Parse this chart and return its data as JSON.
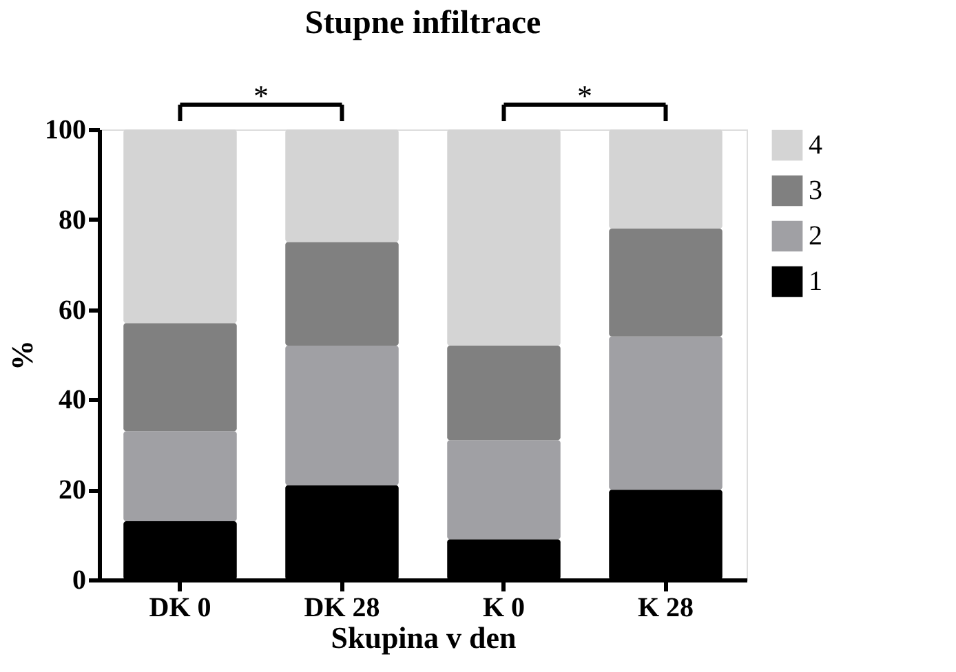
{
  "chart_data": {
    "type": "bar",
    "title": "Stupne infiltrace",
    "xlabel": "Skupina v den",
    "ylabel": "%",
    "categories": [
      "DK 0",
      "DK 28",
      "K 0",
      "K 28"
    ],
    "stacked": true,
    "series": [
      {
        "name": "1",
        "color": "#000000",
        "values": [
          13,
          21,
          9,
          20
        ]
      },
      {
        "name": "2",
        "color": "#a0a0a4",
        "values": [
          20,
          31,
          22,
          34
        ]
      },
      {
        "name": "3",
        "color": "#808080",
        "values": [
          24,
          23,
          21,
          24
        ]
      },
      {
        "name": "4",
        "color": "#d4d4d4",
        "values": [
          43,
          25,
          48,
          22
        ]
      }
    ],
    "ylim": [
      0,
      100
    ],
    "yticks": [
      0,
      20,
      40,
      60,
      80,
      100
    ],
    "grid": false,
    "legend": "right",
    "annotations": [
      "*",
      "*"
    ]
  }
}
